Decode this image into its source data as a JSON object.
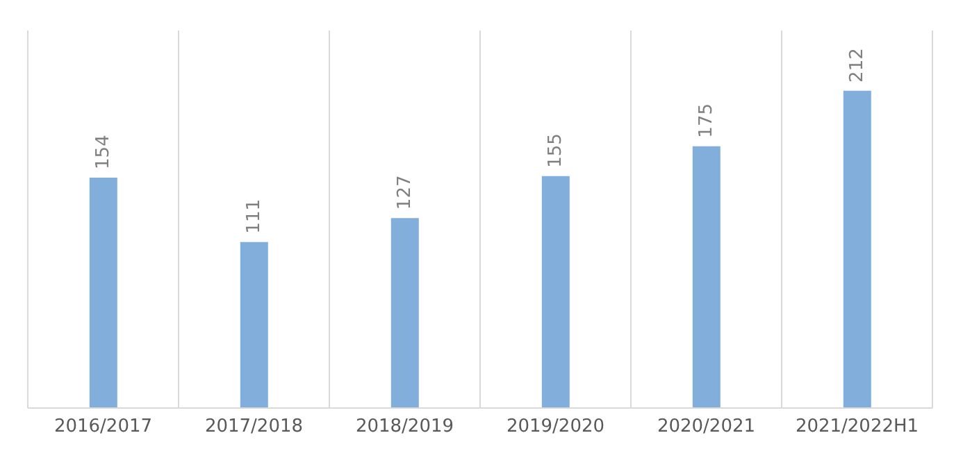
{
  "chart_data": {
    "type": "bar",
    "categories": [
      "2016/2017",
      "2017/2018",
      "2018/2019",
      "2019/2020",
      "2020/2021",
      "2021/2022H1"
    ],
    "values": [
      154,
      111,
      127,
      155,
      175,
      212
    ],
    "color": "#82aedc",
    "data_labels": true,
    "grid": "x"
  }
}
